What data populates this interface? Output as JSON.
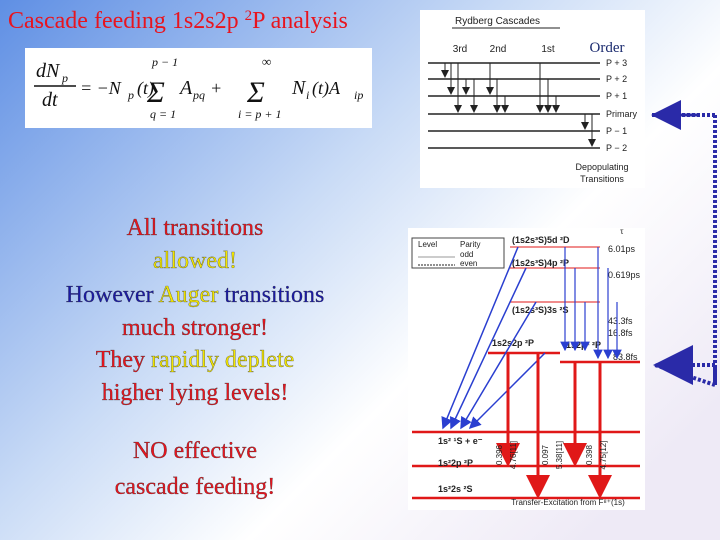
{
  "slide": {
    "title": [
      "Cascade feeding 1s2s2p ",
      "2",
      "P analysis"
    ],
    "equation": [
      "dN",
      "p",
      "dt",
      "= −N",
      "p",
      "(t)",
      "p − 1",
      "Σ",
      "q = 1",
      "A",
      "pq",
      "+",
      "∞",
      "Σ",
      "i = p + 1",
      "N",
      "i",
      "(t)A",
      "ip"
    ],
    "body": [
      [
        {
          "text": "All transitions",
          "color": "#e8141e"
        }
      ],
      [
        {
          "text": "allowed!",
          "color": "#f2e600"
        }
      ],
      [
        {
          "text": "However ",
          "color": "#1a1aa6"
        },
        {
          "text": "Auger",
          "color": "#f2e600"
        },
        {
          "text": " transitions",
          "color": "#1a1aa6"
        }
      ],
      [
        {
          "text": "much stronger!",
          "color": "#e8141e"
        }
      ],
      [
        {
          "text": "They ",
          "color": "#e8141e"
        },
        {
          "text": "rapidly deplete",
          "color": "#f2e600"
        }
      ],
      [
        {
          "text": "higher lying levels!",
          "color": "#e8141e"
        }
      ],
      [
        {
          "text": "NO effective",
          "color": "#e8141e"
        }
      ],
      [
        {
          "text": "cascade feeding!",
          "color": "#e8141e"
        }
      ]
    ],
    "rydberg": {
      "title": "Rydberg Cascades",
      "columns": [
        "3rd",
        "2nd",
        "1st"
      ],
      "order": "Order",
      "levels": [
        "P + 3",
        "P + 2",
        "P + 1",
        "Primary",
        "P − 1",
        "P − 2"
      ],
      "footer": [
        "Depopulating",
        "Transitions"
      ]
    },
    "levels_diagram": {
      "legend": [
        "Level",
        "Parity",
        "odd",
        "even"
      ],
      "tau": "τ",
      "levels": [
        "(1s2s³S)5d ²D",
        "(1s2s³S)4p ²P",
        "(1s2s³S)3s ²S",
        "1s2s2p ²P",
        "1s2p² ²P",
        "1s² ¹S + e⁻",
        "1s²2p ²P",
        "1s²2s ²S"
      ],
      "lifetimes": [
        "6.01ps",
        "0.619ps",
        "43.3fs",
        "16.8fs",
        "83.8fs"
      ],
      "rates": [
        "0.396",
        "4.76[11]",
        "0.097",
        "5.38[11]",
        "0.398",
        "4.75[12]"
      ],
      "footer": "Transfer-Excitation from F⁸⁺(1s)"
    }
  }
}
